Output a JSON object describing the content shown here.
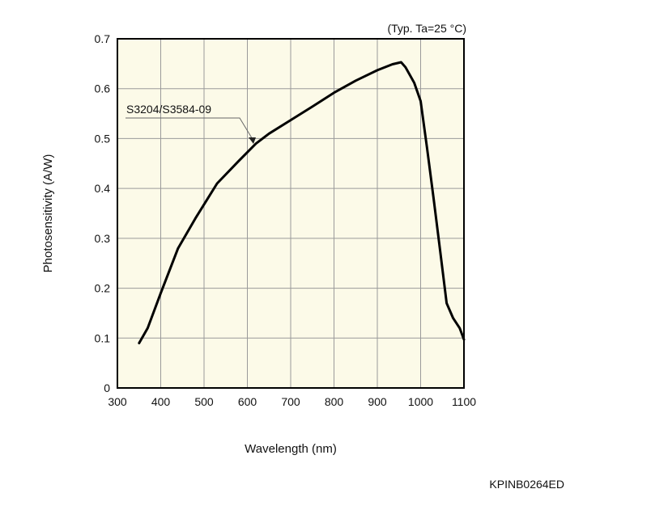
{
  "chart_data": {
    "type": "line",
    "condition_note": "(Typ. Ta=25 °C)",
    "xlabel": "Wavelength (nm)",
    "ylabel": "Photosensitivity (A/W)",
    "xlim": [
      300,
      1100
    ],
    "ylim": [
      0,
      0.7
    ],
    "x_ticks": [
      "300",
      "400",
      "500",
      "600",
      "700",
      "800",
      "900",
      "1000",
      "1100"
    ],
    "y_ticks": [
      "0",
      "0.1",
      "0.2",
      "0.3",
      "0.4",
      "0.5",
      "0.6",
      "0.7"
    ],
    "grid": true,
    "series": [
      {
        "name": "S3204/S3584-09",
        "color": "#000000",
        "x": [
          350,
          370,
          400,
          440,
          480,
          530,
          580,
          620,
          650,
          700,
          750,
          800,
          850,
          900,
          935,
          955,
          965,
          985,
          1000,
          1015,
          1030,
          1045,
          1060,
          1075,
          1090,
          1100
        ],
        "y": [
          0.09,
          0.12,
          0.19,
          0.28,
          0.34,
          0.41,
          0.455,
          0.49,
          0.51,
          0.537,
          0.564,
          0.592,
          0.616,
          0.637,
          0.649,
          0.653,
          0.643,
          0.612,
          0.575,
          0.48,
          0.38,
          0.275,
          0.17,
          0.14,
          0.12,
          0.097
        ]
      }
    ],
    "footer_code": "KPINB0264ED",
    "colors": {
      "plot_background": "#fcfae8",
      "grid": "#9a9a9a",
      "axis": "#000000"
    }
  }
}
